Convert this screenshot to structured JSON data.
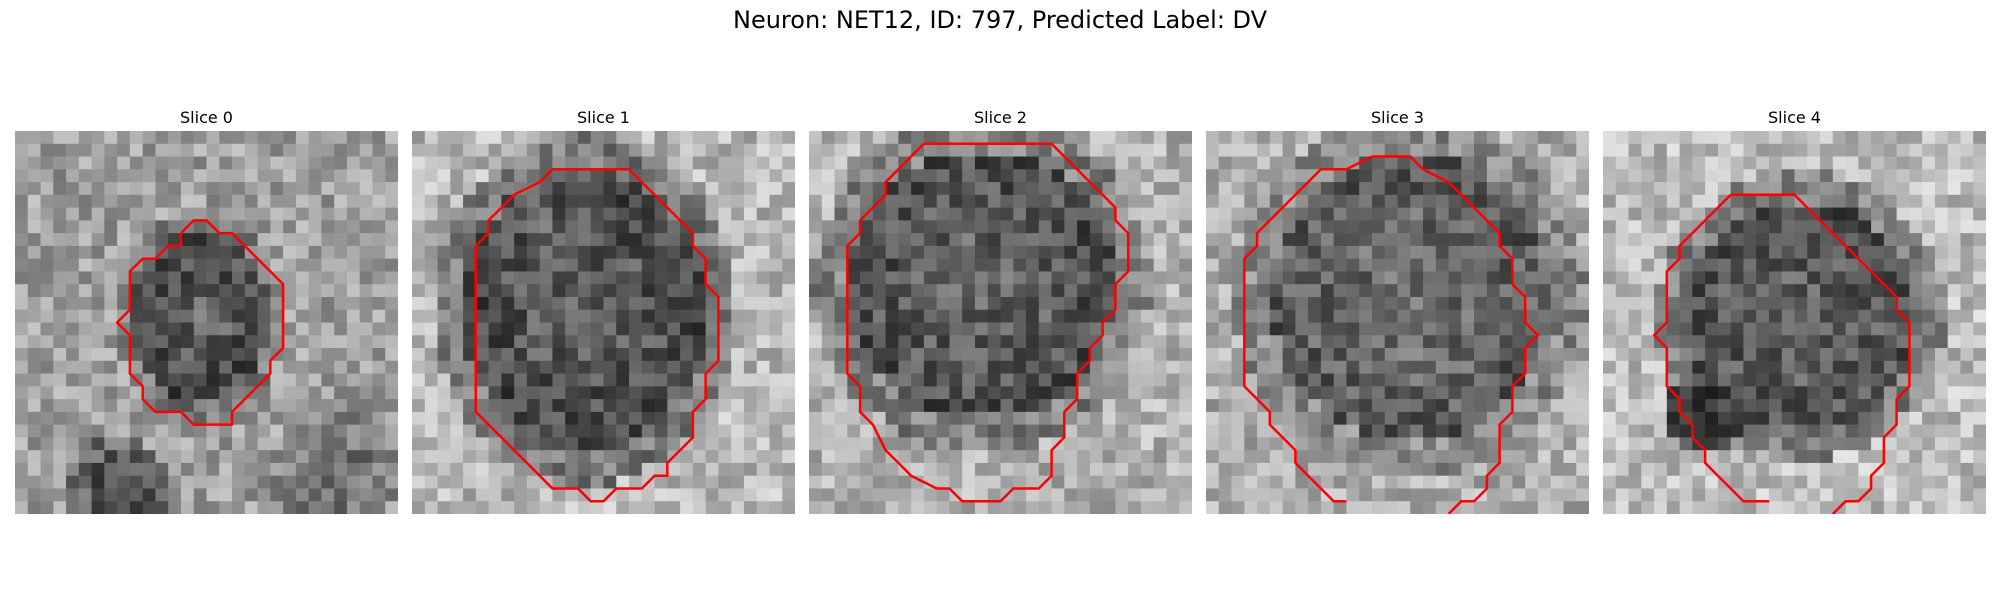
{
  "figure": {
    "title": "Neuron: NET12, ID: 797, Predicted Label: DV",
    "contour_color": "#ff0000",
    "colormap": "grayscale",
    "panels": [
      {
        "label": "Slice 0"
      },
      {
        "label": "Slice 1"
      },
      {
        "label": "Slice 2"
      },
      {
        "label": "Slice 3"
      },
      {
        "label": "Slice 4"
      }
    ]
  }
}
